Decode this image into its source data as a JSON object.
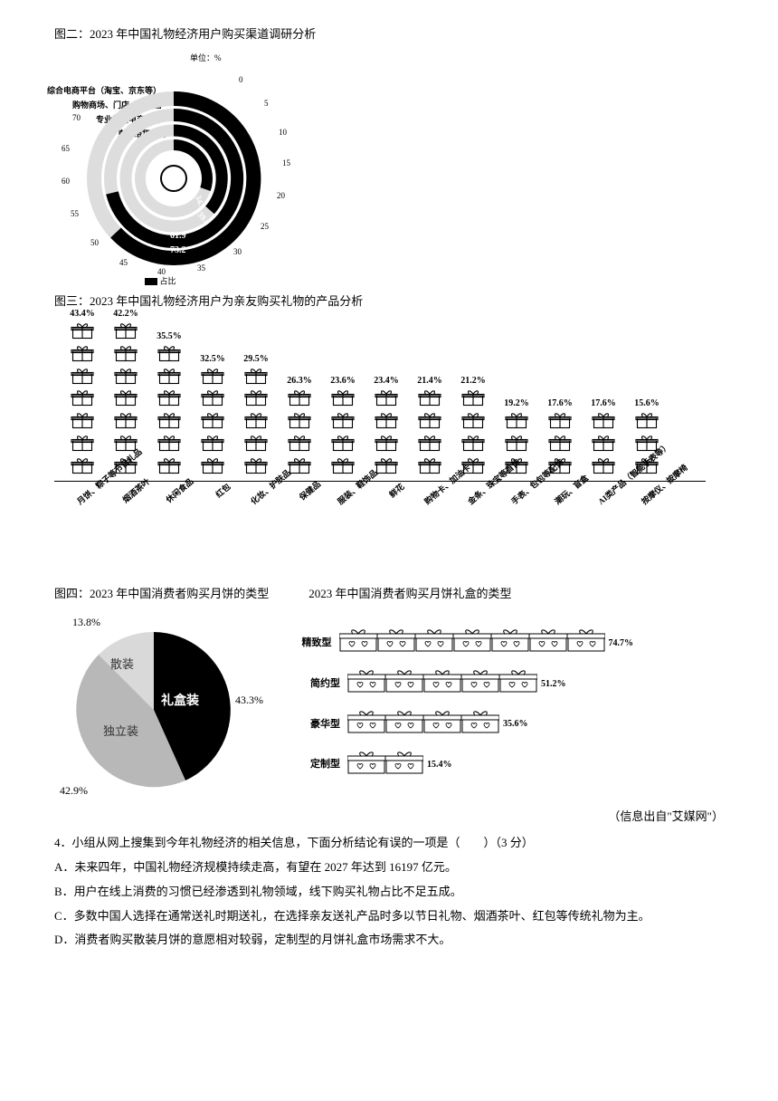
{
  "fig2": {
    "caption": "图二：2023 年中国礼物经济用户购买渠道调研分析",
    "unit": "单位：%",
    "ticks": [
      "0",
      "5",
      "10",
      "15",
      "20",
      "25",
      "30",
      "35",
      "40",
      "45",
      "50",
      "55",
      "60",
      "65",
      "70"
    ],
    "series": [
      {
        "label": "综合电商平台（淘宝、京东等）",
        "value": 73.2,
        "color": "#000000"
      },
      {
        "label": "购物商场、门店、礼品店",
        "value": 61.9,
        "color": "#000000"
      },
      {
        "label": "专业礼品电商平台",
        "value": 39.0,
        "color": "#000000"
      },
      {
        "label": "直播带货平台",
        "value": 34.1,
        "color": "#000000"
      }
    ],
    "legend": "占比",
    "background": "#ffffff"
  },
  "fig3": {
    "caption": "图三：2023 年中国礼物经济用户为亲友购买礼物的产品分析",
    "items": [
      {
        "label": "月饼、粽子等节日礼品",
        "value": 43.4
      },
      {
        "label": "烟酒茶叶",
        "value": 42.2
      },
      {
        "label": "休闲食品",
        "value": 35.5
      },
      {
        "label": "红包",
        "value": 32.5
      },
      {
        "label": "化妆、护肤品",
        "value": 29.5
      },
      {
        "label": "保健品",
        "value": 26.3
      },
      {
        "label": "服装、鞋饰品",
        "value": 23.6
      },
      {
        "label": "鲜花",
        "value": 23.4
      },
      {
        "label": "购物卡、加油卡",
        "value": 21.4
      },
      {
        "label": "金条、珠宝等首饰",
        "value": 21.2
      },
      {
        "label": "手表、包包等配饰",
        "value": 19.2
      },
      {
        "label": "潮玩、盲盒",
        "value": 17.6
      },
      {
        "label": "AI类产品（智能手表等）",
        "value": 17.6
      },
      {
        "label": "按摩仪、按摩椅",
        "value": 15.6
      }
    ],
    "icon_color": "#000000",
    "value_suffix": "%"
  },
  "fig4": {
    "caption_left": "图四：2023 年中国消费者购买月饼的类型",
    "caption_right": "2023 年中国消费者购买月饼礼盒的类型",
    "pie": {
      "slices": [
        {
          "label": "礼盒装",
          "value": 43.3,
          "color": "#000000",
          "text_color": "#ffffff"
        },
        {
          "label": "独立装",
          "value": 42.9,
          "color": "#b8b8b8",
          "text_color": "#333333"
        },
        {
          "label": "散装",
          "value": 13.8,
          "color": "#d9d9d9",
          "text_color": "#333333"
        }
      ]
    },
    "boxes": {
      "items": [
        {
          "label": "精致型",
          "value": 74.7
        },
        {
          "label": "简约型",
          "value": 51.2
        },
        {
          "label": "豪华型",
          "value": 35.6
        },
        {
          "label": "定制型",
          "value": 15.4
        }
      ],
      "unit_icon_value": 10,
      "icon_border": "#000000"
    }
  },
  "source": "（信息出自\"艾媒网\"）",
  "question": {
    "stem": "4．小组从网上搜集到今年礼物经济的相关信息，下面分析结论有误的一项是（　　）（3 分）",
    "options": [
      "A．未来四年，中国礼物经济规模持续走高，有望在 2027 年达到 16197 亿元。",
      "B．用户在线上消费的习惯已经渗透到礼物领域，线下购买礼物占比不足五成。",
      "C．多数中国人选择在通常送礼时期送礼，在选择亲友送礼产品时多以节日礼物、烟酒茶叶、红包等传统礼物为主。",
      "D．消费者购买散装月饼的意愿相对较弱，定制型的月饼礼盒市场需求不大。"
    ]
  }
}
